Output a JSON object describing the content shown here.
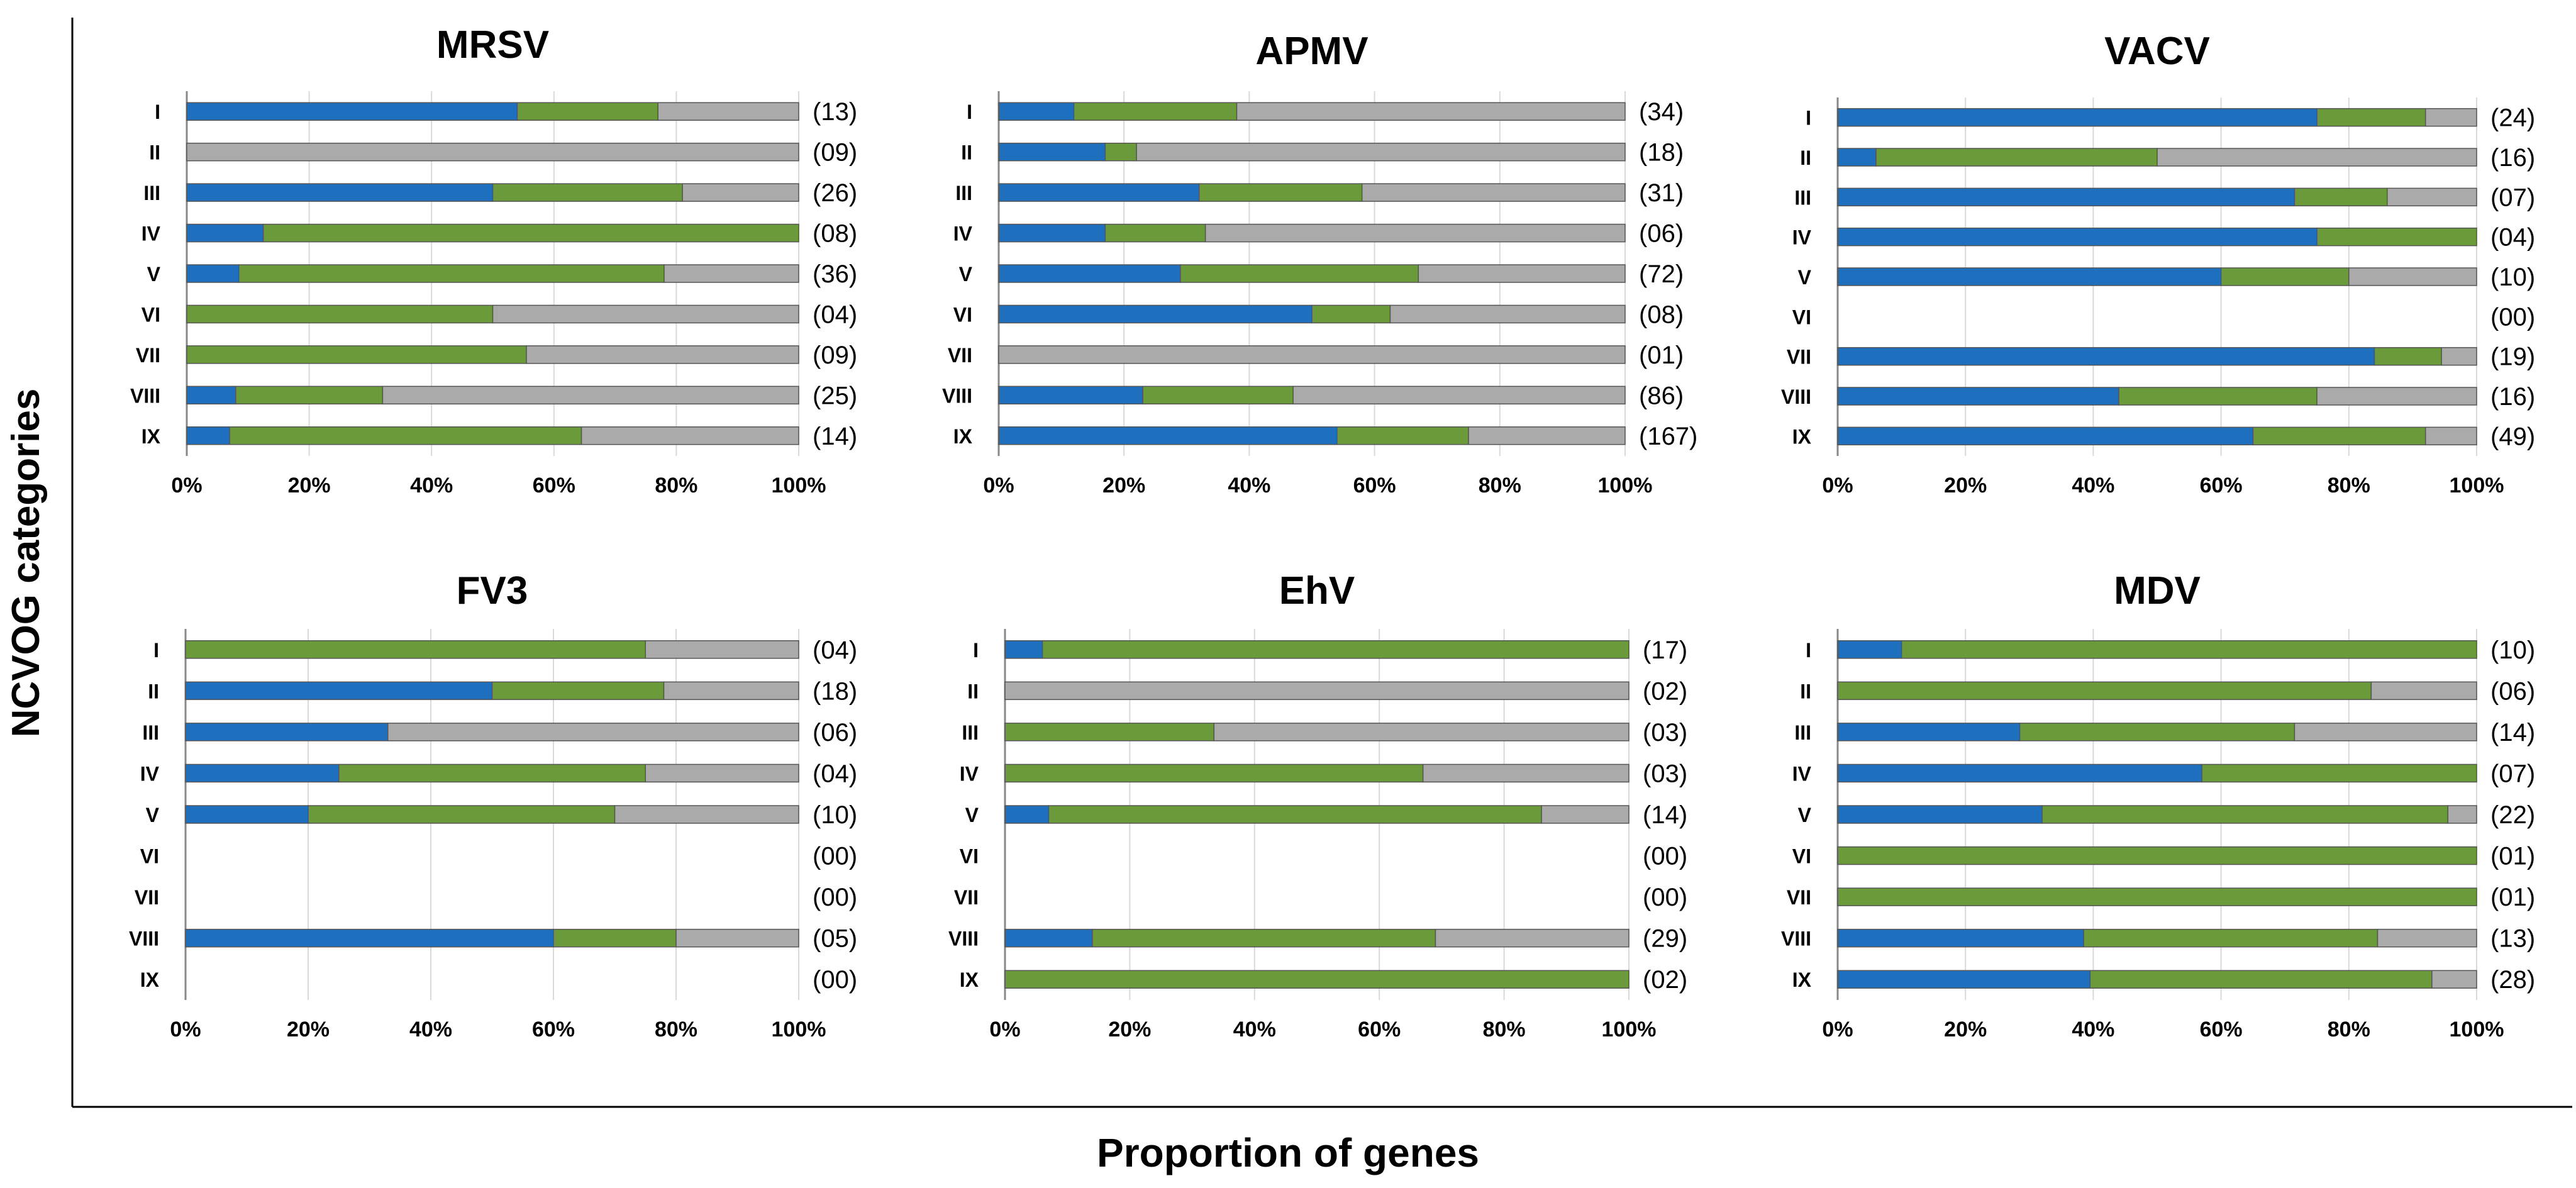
{
  "figure": {
    "ylabel": "NCVOG categories",
    "xlabel": "Proportion of genes"
  },
  "colors": {
    "blue": "#1f6fbf",
    "green": "#6a9a3a",
    "gray": "#aaaaaa",
    "axis": "#000000",
    "grid": "#d9d9d9"
  },
  "chart_data": [
    {
      "type": "bar",
      "orientation": "horizontal",
      "stacked": "percent",
      "title": "MRSV",
      "categories": [
        "I",
        "II",
        "III",
        "IV",
        "V",
        "VI",
        "VII",
        "VIII",
        "IX"
      ],
      "series": [
        {
          "name": "blue",
          "values": [
            54,
            0,
            50,
            12.5,
            8.5,
            0,
            0,
            8,
            7
          ]
        },
        {
          "name": "green",
          "values": [
            23,
            0,
            31,
            87.5,
            69.5,
            50,
            55.5,
            24,
            57.5
          ]
        },
        {
          "name": "gray",
          "values": [
            23,
            100,
            19,
            0,
            22,
            50,
            44.5,
            68,
            35.5
          ]
        }
      ],
      "counts": [
        "(13)",
        "(09)",
        "(26)",
        "(08)",
        "(36)",
        "(04)",
        "(09)",
        "(25)",
        "(14)"
      ],
      "xticks": [
        "0%",
        "20%",
        "40%",
        "60%",
        "80%",
        "100%"
      ],
      "xlim": [
        0,
        100
      ]
    },
    {
      "type": "bar",
      "orientation": "horizontal",
      "stacked": "percent",
      "title": "APMV",
      "categories": [
        "I",
        "II",
        "III",
        "IV",
        "V",
        "VI",
        "VII",
        "VIII",
        "IX"
      ],
      "series": [
        {
          "name": "blue",
          "values": [
            12,
            17,
            32,
            17,
            29,
            50,
            0,
            23,
            54
          ]
        },
        {
          "name": "green",
          "values": [
            26,
            5,
            26,
            16,
            38,
            12.5,
            0,
            24,
            21
          ]
        },
        {
          "name": "gray",
          "values": [
            62,
            78,
            42,
            67,
            33,
            37.5,
            100,
            53,
            25
          ]
        }
      ],
      "counts": [
        "(34)",
        "(18)",
        "(31)",
        "(06)",
        "(72)",
        "(08)",
        "(01)",
        "(86)",
        "(167)"
      ],
      "xticks": [
        "0%",
        "20%",
        "40%",
        "60%",
        "80%",
        "100%"
      ],
      "xlim": [
        0,
        100
      ]
    },
    {
      "type": "bar",
      "orientation": "horizontal",
      "stacked": "percent",
      "title": "VACV",
      "categories": [
        "I",
        "II",
        "III",
        "IV",
        "V",
        "VI",
        "VII",
        "VIII",
        "IX"
      ],
      "series": [
        {
          "name": "blue",
          "values": [
            75,
            6,
            71.5,
            75,
            60,
            0,
            84,
            44,
            65
          ]
        },
        {
          "name": "green",
          "values": [
            17,
            44,
            14.5,
            25,
            20,
            0,
            10.5,
            31,
            27
          ]
        },
        {
          "name": "gray",
          "values": [
            8,
            50,
            14,
            0,
            20,
            0,
            5.5,
            25,
            8
          ]
        }
      ],
      "counts": [
        "(24)",
        "(16)",
        "(07)",
        "(04)",
        "(10)",
        "(00)",
        "(19)",
        "(16)",
        "(49)"
      ],
      "xticks": [
        "0%",
        "20%",
        "40%",
        "60%",
        "80%",
        "100%"
      ],
      "xlim": [
        0,
        100
      ]
    },
    {
      "type": "bar",
      "orientation": "horizontal",
      "stacked": "percent",
      "title": "FV3",
      "categories": [
        "I",
        "II",
        "III",
        "IV",
        "V",
        "VI",
        "VII",
        "VIII",
        "IX"
      ],
      "series": [
        {
          "name": "blue",
          "values": [
            0,
            50,
            33,
            25,
            20,
            0,
            0,
            60,
            0
          ]
        },
        {
          "name": "green",
          "values": [
            75,
            28,
            0,
            50,
            50,
            0,
            0,
            20,
            0
          ]
        },
        {
          "name": "gray",
          "values": [
            25,
            22,
            67,
            25,
            30,
            0,
            0,
            20,
            0
          ]
        }
      ],
      "counts": [
        "(04)",
        "(18)",
        "(06)",
        "(04)",
        "(10)",
        "(00)",
        "(00)",
        "(05)",
        "(00)"
      ],
      "xticks": [
        "0%",
        "20%",
        "40%",
        "60%",
        "80%",
        "100%"
      ],
      "xlim": [
        0,
        100
      ]
    },
    {
      "type": "bar",
      "orientation": "horizontal",
      "stacked": "percent",
      "title": "EhV",
      "categories": [
        "I",
        "II",
        "III",
        "IV",
        "V",
        "VI",
        "VII",
        "VIII",
        "IX"
      ],
      "series": [
        {
          "name": "blue",
          "values": [
            6,
            0,
            0,
            0,
            7,
            0,
            0,
            14,
            0
          ]
        },
        {
          "name": "green",
          "values": [
            94,
            0,
            33.5,
            67,
            79,
            0,
            0,
            55,
            100
          ]
        },
        {
          "name": "gray",
          "values": [
            0,
            100,
            66.5,
            33,
            14,
            0,
            0,
            31,
            0
          ]
        }
      ],
      "counts": [
        "(17)",
        "(02)",
        "(03)",
        "(03)",
        "(14)",
        "(00)",
        "(00)",
        "(29)",
        "(02)"
      ],
      "xticks": [
        "0%",
        "20%",
        "40%",
        "60%",
        "80%",
        "100%"
      ],
      "xlim": [
        0,
        100
      ]
    },
    {
      "type": "bar",
      "orientation": "horizontal",
      "stacked": "percent",
      "title": "MDV",
      "categories": [
        "I",
        "II",
        "III",
        "IV",
        "V",
        "VI",
        "VII",
        "VIII",
        "IX"
      ],
      "series": [
        {
          "name": "blue",
          "values": [
            10,
            0,
            28.5,
            57,
            32,
            0,
            0,
            38.5,
            39.5
          ]
        },
        {
          "name": "green",
          "values": [
            90,
            83.5,
            43,
            43,
            63.5,
            100,
            100,
            46,
            53.5
          ]
        },
        {
          "name": "gray",
          "values": [
            0,
            16.5,
            28.5,
            0,
            4.5,
            0,
            0,
            15.5,
            7
          ]
        }
      ],
      "counts": [
        "(10)",
        "(06)",
        "(14)",
        "(07)",
        "(22)",
        "(01)",
        "(01)",
        "(13)",
        "(28)"
      ],
      "xticks": [
        "0%",
        "20%",
        "40%",
        "60%",
        "80%",
        "100%"
      ],
      "xlim": [
        0,
        100
      ]
    }
  ]
}
